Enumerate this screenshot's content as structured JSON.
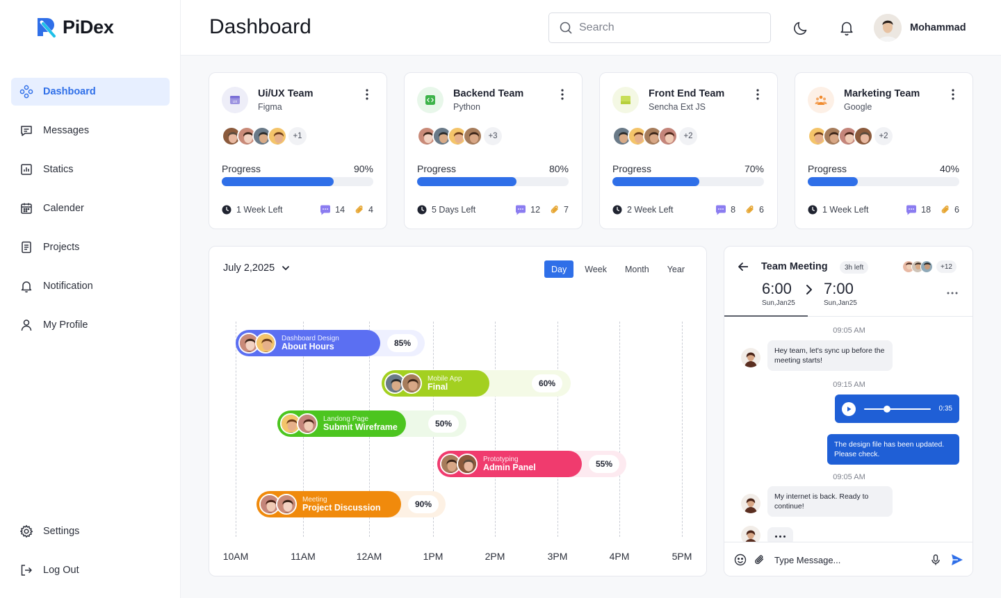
{
  "brand": {
    "name": "PiDex"
  },
  "sidebar": {
    "items": [
      {
        "label": "Dashboard",
        "icon": "dashboard-icon",
        "active": true
      },
      {
        "label": "Messages",
        "icon": "message-icon"
      },
      {
        "label": "Statics",
        "icon": "bar-chart-icon"
      },
      {
        "label": "Calender",
        "icon": "calendar-icon"
      },
      {
        "label": "Projects",
        "icon": "document-icon"
      },
      {
        "label": "Notification",
        "icon": "bell-icon"
      },
      {
        "label": "My Profile",
        "icon": "user-icon"
      }
    ],
    "bottom": [
      {
        "label": "Settings",
        "icon": "gear-icon"
      },
      {
        "label": "Log Out",
        "icon": "logout-icon"
      }
    ]
  },
  "header": {
    "title": "Dashboard",
    "search_placeholder": "Search",
    "user_name": "Mohammad"
  },
  "teams": [
    {
      "name": "Ui/UX Team",
      "tool": "Figma",
      "extra_members": "+1",
      "progress_label": "Progress",
      "progress": "90%",
      "progress_value": 90,
      "time_left": "1 Week Left",
      "comments": "14",
      "attachments": "4",
      "icon_bg": "#eeeef8",
      "icon_color": "#7b6fd6"
    },
    {
      "name": "Backend Team",
      "tool": "Python",
      "extra_members": "+3",
      "progress_label": "Progress",
      "progress": "80%",
      "progress_value": 80,
      "time_left": "5 Days Left",
      "comments": "12",
      "attachments": "7",
      "icon_bg": "#e8f7ea",
      "icon_color": "#3db34a"
    },
    {
      "name": "Front End Team",
      "tool": "Sencha Ext JS",
      "extra_members": "+2",
      "progress_label": "Progress",
      "progress": "70%",
      "progress_value": 70,
      "time_left": "2 Week Left",
      "comments": "8",
      "attachments": "6",
      "icon_bg": "#f4f8e4",
      "icon_color": "#b6cf3c"
    },
    {
      "name": "Marketing Team",
      "tool": "Google",
      "extra_members": "+2",
      "progress_label": "Progress",
      "progress": "40%",
      "progress_value": 40,
      "time_left": "1 Week Left",
      "comments": "18",
      "attachments": "6",
      "icon_bg": "#fdf0e6",
      "icon_color": "#f08a2c"
    }
  ],
  "timeline": {
    "date": "July 2,2025",
    "views": [
      "Day",
      "Week",
      "Month",
      "Year"
    ],
    "active_view": "Day",
    "hours": [
      "10AM",
      "11AM",
      "12AM",
      "1PM",
      "2PM",
      "3PM",
      "4PM",
      "5PM"
    ],
    "tasks": [
      {
        "category": "Dashboard Design",
        "title": "About Hours",
        "percent": "85%",
        "color": "#5b6ff2",
        "bg": "#eef0ff"
      },
      {
        "category": "Mobile App",
        "title": "Final",
        "percent": "60%",
        "color": "#a3d020",
        "bg": "#f4fae6"
      },
      {
        "category": "Landong Page",
        "title": "Submit Wireframe",
        "percent": "50%",
        "color": "#4cc51f",
        "bg": "#edf9e8"
      },
      {
        "category": "Prototyping",
        "title": "Admin Panel",
        "percent": "55%",
        "color": "#f03b6e",
        "bg": "#fdeaf0"
      },
      {
        "category": "Meeting",
        "title": "Project Discussion",
        "percent": "90%",
        "color": "#f08a0c",
        "bg": "#fdf1e4"
      }
    ]
  },
  "chat": {
    "title": "Team Meeting",
    "badge": "3h left",
    "extra_members": "+12",
    "start_time": "6:00",
    "start_date": "Sun,Jan25",
    "end_time": "7:00",
    "end_date": "Sun,Jan25",
    "messages": [
      {
        "time": "09:05 AM",
        "text": "Hey team, let's sync up before the meeting starts!"
      },
      {
        "time": "09:15 AM",
        "voice_duration": "0:35",
        "voice_progress": 0.35
      },
      {
        "text": "The design file has been updated. Please check."
      },
      {
        "time": "09:05 AM",
        "text": "My internet is back. Ready to continue!"
      }
    ],
    "input_placeholder": "Type Message..."
  },
  "colors": {
    "accent": "#2f6fe8",
    "chat_bubble_out": "#1f5fd6"
  }
}
